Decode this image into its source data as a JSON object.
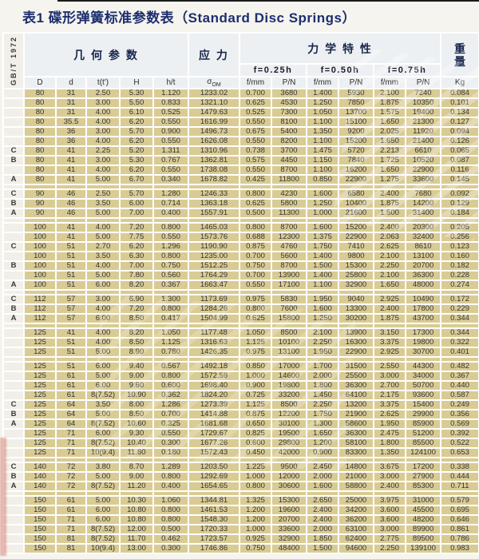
{
  "page": {
    "title": "表1 碟形弹簧标准参数表（Standard Disc Springs）",
    "standard_ref": "GB/T 1972"
  },
  "colors": {
    "cell_bg": "#d9cb94",
    "grid": "#ffffff",
    "header_bg": "#edf0f2",
    "series_col_bg": "#f1efe7",
    "title_text": "#1c2e6f",
    "header_text": "#16254c",
    "data_text": "#333333"
  },
  "table": {
    "group_headers": {
      "geometry": "几 何 参 数",
      "stress": "应 力",
      "mechanical": "力 学 特 性",
      "weight_chars": [
        "重",
        "量"
      ],
      "load_levels": [
        "f=0.25h",
        "f=0.50h",
        "f=0.75h"
      ]
    },
    "columns": {
      "geometry": [
        "D",
        "d",
        "t(t')",
        "H",
        "h/t"
      ],
      "sigma_symbol": "σ",
      "sigma_sub": "OM",
      "mechanical": [
        "f/mm",
        "P/N",
        "f/mm",
        "P/N",
        "f/mm",
        "P/N"
      ],
      "weight_unit": "Kg"
    },
    "groups": [
      [
        [
          "",
          "80",
          "31",
          "2.50",
          "5.30",
          "1.120",
          "1233.02",
          "0.700",
          "3680",
          "1.400",
          "5930",
          "2.100",
          "7240",
          "0.084"
        ],
        [
          "",
          "80",
          "31",
          "3.00",
          "5.50",
          "0.833",
          "1321.10",
          "0.625",
          "4530",
          "1.250",
          "7850",
          "1.875",
          "10350",
          "0.101"
        ],
        [
          "",
          "80",
          "31",
          "4.00",
          "6.10",
          "0.525",
          "1479.63",
          "0.525",
          "7300",
          "1.050",
          "13700",
          "1.575",
          "19400",
          "0.134"
        ],
        [
          "",
          "80",
          "35.5",
          "4.00",
          "6.20",
          "0.550",
          "1616.99",
          "0.550",
          "8100",
          "1.100",
          "15100",
          "1.650",
          "21300",
          "0.127"
        ],
        [
          "",
          "80",
          "36",
          "3.00",
          "5.70",
          "0.900",
          "1496.73",
          "0.675",
          "5400",
          "1.350",
          "9200",
          "2.025",
          "11920",
          "0.094"
        ],
        [
          "",
          "80",
          "36",
          "4.00",
          "6.20",
          "0.550",
          "1626.08",
          "0.550",
          "8200",
          "1.100",
          "15200",
          "1.650",
          "21400",
          "0.126"
        ],
        [
          "C",
          "80",
          "41",
          "2.25",
          "5.20",
          "1.311",
          "1310.96",
          "0.738",
          "3700",
          "1.475",
          "5720",
          "2.213",
          "6610",
          "0.065"
        ],
        [
          "B",
          "80",
          "41",
          "3.00",
          "5.30",
          "0.767",
          "1362.81",
          "0.575",
          "4450",
          "1.150",
          "7840",
          "1.725",
          "10520",
          "0.087"
        ],
        [
          "",
          "80",
          "41",
          "4.00",
          "6.20",
          "0.550",
          "1738.08",
          "0.550",
          "8700",
          "1.100",
          "16200",
          "1.650",
          "22900",
          "0.116"
        ],
        [
          "A",
          "80",
          "41",
          "5.00",
          "6.70",
          "0.340",
          "1678.82",
          "0.425",
          "11800",
          "0.850",
          "22900",
          "1.275",
          "33600",
          "0.145"
        ]
      ],
      [
        [
          "C",
          "90",
          "46",
          "2.50",
          "5.70",
          "1.280",
          "1246.33",
          "0.800",
          "4230",
          "1.600",
          "6580",
          "2.400",
          "7680",
          "0.092"
        ],
        [
          "B",
          "90",
          "46",
          "3.50",
          "6.00",
          "0.714",
          "1363.18",
          "0.625",
          "5800",
          "1.250",
          "10400",
          "1.875",
          "14200",
          "0.129"
        ],
        [
          "A",
          "90",
          "46",
          "5.00",
          "7.00",
          "0.400",
          "1557.91",
          "0.500",
          "11300",
          "1.000",
          "21600",
          "1.500",
          "31400",
          "0.184"
        ]
      ],
      [
        [
          "",
          "100",
          "41",
          "4.00",
          "7.20",
          "0.800",
          "1465.03",
          "0.800",
          "8700",
          "1.600",
          "15200",
          "2.400",
          "20300",
          "0.205"
        ],
        [
          "",
          "100",
          "41",
          "5.00",
          "7.75",
          "0.550",
          "1573.76",
          "0.688",
          "12300",
          "1.375",
          "22900",
          "2.063",
          "32400",
          "0.256"
        ],
        [
          "C",
          "100",
          "51",
          "2.70",
          "6.20",
          "1.296",
          "1190.90",
          "0.875",
          "4760",
          "1.750",
          "7410",
          "2.625",
          "8610",
          "0.123"
        ],
        [
          "",
          "100",
          "51",
          "3.50",
          "6.30",
          "0.800",
          "1235.00",
          "0.700",
          "5600",
          "1.400",
          "9800",
          "2.100",
          "13100",
          "0.160"
        ],
        [
          "B",
          "100",
          "51",
          "4.00",
          "7.00",
          "0.750",
          "1512.25",
          "0.750",
          "8700",
          "1.500",
          "15300",
          "2.250",
          "20700",
          "0.182"
        ],
        [
          "",
          "100",
          "51",
          "5.00",
          "7.80",
          "0.560",
          "1764.29",
          "0.700",
          "13900",
          "1.400",
          "25800",
          "2.100",
          "36300",
          "0.228"
        ],
        [
          "A",
          "100",
          "51",
          "6.00",
          "8.20",
          "0.367",
          "1663.47",
          "0.550",
          "17100",
          "1.100",
          "32900",
          "1.650",
          "48000",
          "0.274"
        ]
      ],
      [
        [
          "C",
          "112",
          "57",
          "3.00",
          "6.90",
          "1.300",
          "1173.69",
          "0.975",
          "5830",
          "1.950",
          "9040",
          "2.925",
          "10490",
          "0.172"
        ],
        [
          "B",
          "112",
          "57",
          "4.00",
          "7.20",
          "0.800",
          "1284.26",
          "0.800",
          "7600",
          "1.600",
          "13300",
          "2.400",
          "17800",
          "0.229"
        ],
        [
          "A",
          "112",
          "57",
          "6.00",
          "8.50",
          "0.417",
          "1504.99",
          "0.625",
          "15800",
          "1.250",
          "30200",
          "1.875",
          "43700",
          "0.344"
        ]
      ],
      [
        [
          "",
          "125",
          "41",
          "4.00",
          "8.20",
          "1.050",
          "1177.48",
          "1.050",
          "8500",
          "2.100",
          "13900",
          "3.150",
          "17300",
          "0.344"
        ],
        [
          "",
          "125",
          "51",
          "4.00",
          "8.50",
          "1.125",
          "1316.63",
          "1.125",
          "10100",
          "2.250",
          "16300",
          "3.375",
          "19800",
          "0.322"
        ],
        [
          "",
          "125",
          "51",
          "5.00",
          "8.90",
          "0.780",
          "1426.35",
          "0.975",
          "13100",
          "1.950",
          "22900",
          "2.925",
          "30700",
          "0.401"
        ]
      ],
      [
        [
          "",
          "125",
          "51",
          "6.00",
          "9.40",
          "0.567",
          "1492.18",
          "0.850",
          "17000",
          "1.700",
          "31500",
          "2.550",
          "44300",
          "0.482"
        ],
        [
          "",
          "125",
          "61",
          "5.00",
          "9.00",
          "0.800",
          "1572.59",
          "1.000",
          "14600",
          "2.000",
          "25500",
          "3.000",
          "34000",
          "0.367"
        ],
        [
          "",
          "125",
          "61",
          "6.00",
          "9.60",
          "0.600",
          "1698.40",
          "0.900",
          "19800",
          "1.800",
          "36300",
          "2.700",
          "50700",
          "0.440"
        ],
        [
          "",
          "125",
          "61",
          "8(7.52)",
          "10.90",
          "0.362",
          "1824.20",
          "0.725",
          "33200",
          "1.450",
          "64100",
          "2.175",
          "93600",
          "0.587"
        ],
        [
          "C",
          "125",
          "64",
          "3.50",
          "8.00",
          "1.286",
          "1273.39",
          "1.125",
          "8500",
          "2.250",
          "13200",
          "3.375",
          "15400",
          "0.249"
        ],
        [
          "B",
          "125",
          "64",
          "5.00",
          "8.50",
          "0.700",
          "1414.88",
          "0.875",
          "12200",
          "1.750",
          "21900",
          "2.625",
          "29900",
          "0.356"
        ],
        [
          "A",
          "125",
          "64",
          "8(7.52)",
          "10.60",
          "0.325",
          "1681.68",
          "0.650",
          "30100",
          "1.300",
          "58600",
          "1.950",
          "85900",
          "0.569"
        ],
        [
          "",
          "125",
          "71",
          "6.00",
          "9.30",
          "0.550",
          "1729.67",
          "0.825",
          "19500",
          "1.650",
          "36300",
          "2.475",
          "51200",
          "0.392"
        ],
        [
          "",
          "125",
          "71",
          "8(7.52)",
          "10.40",
          "0.300",
          "1677.26",
          "0.600",
          "29800",
          "1.200",
          "58100",
          "1.800",
          "85500",
          "0.522"
        ],
        [
          "",
          "125",
          "71",
          "10(9.4)",
          "11.80",
          "0.180",
          "1572.43",
          "0.450",
          "42000",
          "0.900",
          "83300",
          "1.350",
          "124100",
          "0.653"
        ]
      ],
      [
        [
          "C",
          "140",
          "72",
          "3.80",
          "8.70",
          "1.289",
          "1203.50",
          "1.225",
          "9500",
          "2.450",
          "14800",
          "3.675",
          "17200",
          "0.338"
        ],
        [
          "B",
          "140",
          "72",
          "5.00",
          "9.00",
          "0.800",
          "1292.69",
          "1.000",
          "12000",
          "2.000",
          "21000",
          "3.000",
          "27900",
          "0.444"
        ],
        [
          "A",
          "140",
          "72",
          "8(7.52)",
          "11.20",
          "0.400",
          "1654.65",
          "0.800",
          "30600",
          "1.600",
          "58800",
          "2.400",
          "85300",
          "0.711"
        ]
      ],
      [
        [
          "",
          "150",
          "61",
          "5.00",
          "10.30",
          "1.060",
          "1344.81",
          "1.325",
          "15300",
          "2.650",
          "25000",
          "3.975",
          "31000",
          "0.579"
        ],
        [
          "",
          "150",
          "61",
          "6.00",
          "10.80",
          "0.800",
          "1461.53",
          "1.200",
          "19600",
          "2.400",
          "34200",
          "3.600",
          "45500",
          "0.695"
        ],
        [
          "",
          "150",
          "71",
          "6.00",
          "10.80",
          "0.800",
          "1548.30",
          "1.200",
          "20700",
          "2.400",
          "36200",
          "3.600",
          "48200",
          "0.646"
        ],
        [
          "",
          "150",
          "71",
          "8(7.52)",
          "12.00",
          "0.500",
          "1720.33",
          "1.000",
          "33600",
          "2.000",
          "63100",
          "3.000",
          "89900",
          "0.861"
        ],
        [
          "",
          "150",
          "81",
          "8(7.52)",
          "11.70",
          "0.462",
          "1723.57",
          "0.925",
          "32900",
          "1.850",
          "62400",
          "2.775",
          "89500",
          "0.786"
        ],
        [
          "",
          "150",
          "81",
          "10(9.4)",
          "13.00",
          "0.300",
          "1746.86",
          "0.750",
          "48400",
          "1.500",
          "94600",
          "2.250",
          "139100",
          "0.983"
        ]
      ]
    ]
  }
}
